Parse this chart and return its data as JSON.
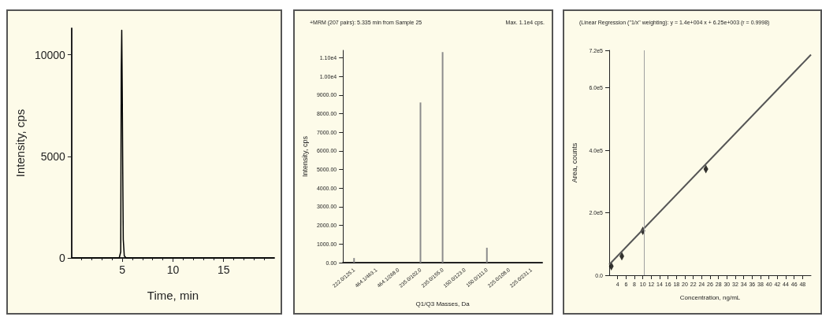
{
  "chart_data": [
    {
      "type": "line",
      "xlabel": "Time, min",
      "ylabel": "Intensity, cps",
      "xlim": [
        0,
        20
      ],
      "ylim": [
        0,
        11300
      ],
      "xticks": [
        5,
        10,
        15
      ],
      "yticks": [
        0,
        5000,
        10000
      ],
      "marker": "none",
      "line_style": "solid",
      "series": [
        {
          "color": "#000000",
          "x": [
            0,
            4.7,
            4.85,
            4.9,
            4.95,
            5.0,
            5.05,
            5.1,
            5.2,
            5.4,
            20
          ],
          "values": [
            0,
            0,
            300,
            9200,
            11200,
            8200,
            4200,
            900,
            100,
            0,
            0
          ]
        }
      ]
    },
    {
      "type": "bar",
      "title": "+MRM (207 pairs): 5.335 min from Sample 25",
      "annotations": [
        "Max. 1.1e4 cps."
      ],
      "xlabel": "Q1/Q3 Masses, Da",
      "ylabel": "Intensity, cps",
      "ylim": [
        0,
        11400
      ],
      "yticks": [
        {
          "value": 0,
          "label": "0.00"
        },
        {
          "value": 1000,
          "label": "1000.00"
        },
        {
          "value": 2000,
          "label": "2000.00"
        },
        {
          "value": 3000,
          "label": "3000.00"
        },
        {
          "value": 4000,
          "label": "4000.00"
        },
        {
          "value": 5000,
          "label": "5000.00"
        },
        {
          "value": 6000,
          "label": "6000.00"
        },
        {
          "value": 7000,
          "label": "7000.00"
        },
        {
          "value": 8000,
          "label": "8000.00"
        },
        {
          "value": 9000,
          "label": "9000.00"
        },
        {
          "value": 10000,
          "label": "1.00e4"
        },
        {
          "value": 11000,
          "label": "1.10e4"
        }
      ],
      "categories": [
        "222.0/125.1",
        "464.1/463.1",
        "464.1/268.0",
        "235.0/102.0",
        "235.0/155.0",
        "150.0/123.0",
        "150.0/111.0",
        "225.0/108.0",
        "225.0/231.1"
      ],
      "series": [
        {
          "color": "#8c8c8c",
          "values": [
            250,
            0,
            0,
            8600,
            11300,
            0,
            800,
            0,
            0
          ]
        }
      ]
    },
    {
      "type": "scatter",
      "title": "(Linear Regression (\"1/x\" weighting): y = 1.4e+004 x + 6.25e+003 (r = 0.9998)",
      "xlabel": "Concentration, ng/mL",
      "ylabel": "Area, counts",
      "xlim": [
        2,
        50
      ],
      "ylim": [
        0,
        720000
      ],
      "xticks": [
        4,
        6,
        8,
        10,
        12,
        14,
        16,
        18,
        20,
        22,
        24,
        26,
        28,
        30,
        32,
        34,
        36,
        38,
        40,
        42,
        44,
        46,
        48
      ],
      "yticks": [
        {
          "value": 0,
          "label": "0.0"
        },
        {
          "value": 200000,
          "label": "2.0e5"
        },
        {
          "value": 400000,
          "label": "4.0e5"
        },
        {
          "value": 600000,
          "label": "6.0e5"
        },
        {
          "value": 720000,
          "label": "7.2e5"
        }
      ],
      "marker": "diamond",
      "ref_lines": [
        {
          "axis": "x",
          "value": 10.3,
          "color": "#a0a0a0"
        }
      ],
      "series": [
        {
          "type": "line",
          "color": "#555555",
          "x": [
            2,
            50
          ],
          "values": [
            34000,
            706000
          ],
          "marker": "none"
        },
        {
          "color": "#000000",
          "x": [
            2.5,
            5,
            10,
            25
          ],
          "values": [
            29000,
            61000,
            142000,
            340000
          ]
        }
      ]
    }
  ]
}
